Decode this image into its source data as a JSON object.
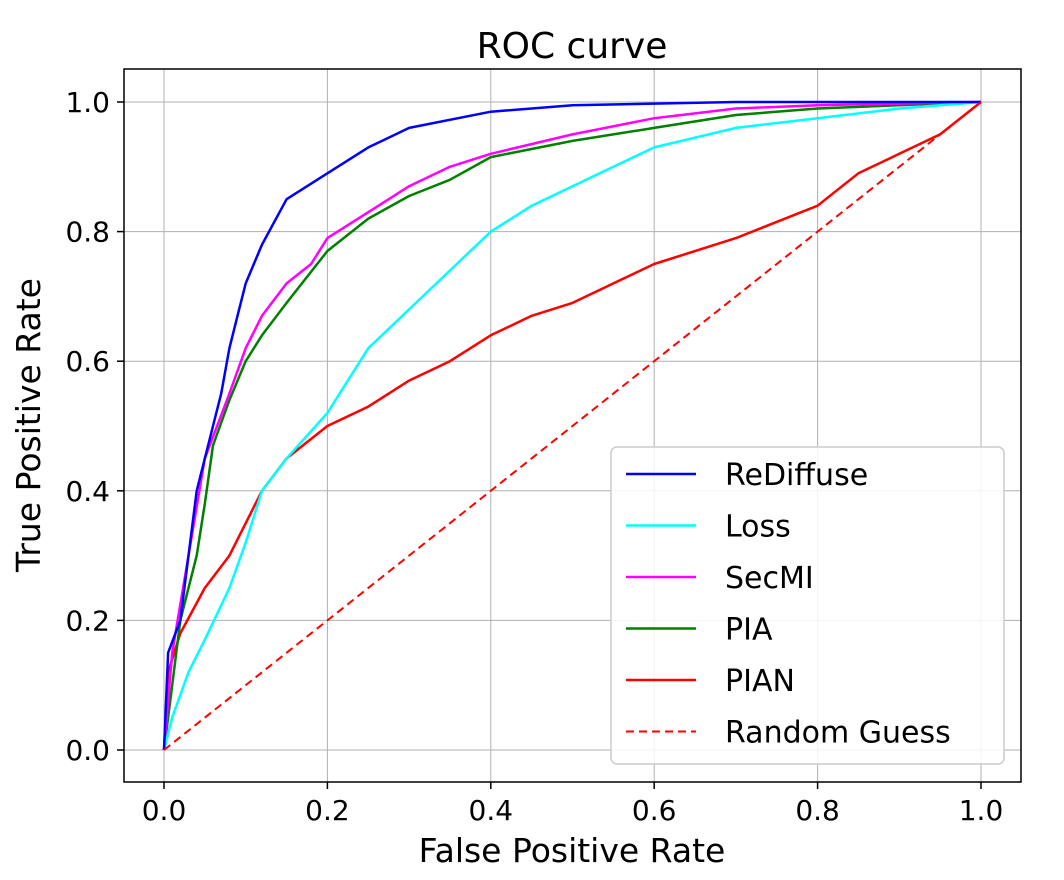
{
  "chart_data": {
    "type": "line",
    "title": "ROC curve",
    "xlabel": "False Positive Rate",
    "ylabel": "True Positive Rate",
    "xlim": [
      -0.05,
      1.05
    ],
    "ylim": [
      -0.05,
      1.05
    ],
    "xticks": [
      "0.0",
      "0.2",
      "0.4",
      "0.6",
      "0.8",
      "1.0"
    ],
    "yticks": [
      "0.0",
      "0.2",
      "0.4",
      "0.6",
      "0.8",
      "1.0"
    ],
    "grid": true,
    "legend_position": "lower-right",
    "series": [
      {
        "name": "ReDiffuse",
        "color": "#0000ff",
        "dash": false,
        "x": [
          0,
          0.005,
          0.02,
          0.03,
          0.04,
          0.06,
          0.07,
          0.08,
          0.09,
          0.1,
          0.12,
          0.15,
          0.2,
          0.25,
          0.3,
          0.4,
          0.5,
          0.7,
          1
        ],
        "y": [
          0,
          0.15,
          0.2,
          0.3,
          0.4,
          0.5,
          0.55,
          0.62,
          0.67,
          0.72,
          0.78,
          0.85,
          0.89,
          0.93,
          0.96,
          0.985,
          0.995,
          1.0,
          1
        ]
      },
      {
        "name": "Loss",
        "color": "#00ffff",
        "dash": false,
        "x": [
          0,
          0.01,
          0.03,
          0.05,
          0.08,
          0.1,
          0.12,
          0.15,
          0.2,
          0.22,
          0.25,
          0.3,
          0.35,
          0.4,
          0.45,
          0.5,
          0.6,
          0.7,
          0.8,
          0.9,
          1
        ],
        "y": [
          0,
          0.05,
          0.12,
          0.17,
          0.25,
          0.32,
          0.4,
          0.45,
          0.52,
          0.56,
          0.62,
          0.68,
          0.74,
          0.8,
          0.84,
          0.87,
          0.93,
          0.96,
          0.975,
          0.99,
          1
        ]
      },
      {
        "name": "SecMI",
        "color": "#ff00ff",
        "dash": false,
        "x": [
          0,
          0.01,
          0.03,
          0.05,
          0.08,
          0.1,
          0.12,
          0.15,
          0.18,
          0.2,
          0.25,
          0.3,
          0.35,
          0.4,
          0.5,
          0.6,
          0.7,
          0.8,
          1
        ],
        "y": [
          0,
          0.15,
          0.3,
          0.45,
          0.55,
          0.62,
          0.67,
          0.72,
          0.75,
          0.79,
          0.83,
          0.87,
          0.9,
          0.92,
          0.95,
          0.975,
          0.99,
          0.995,
          1
        ]
      },
      {
        "name": "PIA",
        "color": "#008000",
        "dash": false,
        "x": [
          0,
          0.01,
          0.02,
          0.04,
          0.05,
          0.06,
          0.08,
          0.1,
          0.12,
          0.15,
          0.2,
          0.25,
          0.3,
          0.35,
          0.4,
          0.5,
          0.6,
          0.7,
          0.8,
          1
        ],
        "y": [
          0,
          0.1,
          0.2,
          0.3,
          0.38,
          0.47,
          0.54,
          0.6,
          0.64,
          0.69,
          0.77,
          0.82,
          0.855,
          0.88,
          0.915,
          0.94,
          0.96,
          0.98,
          0.99,
          1
        ]
      },
      {
        "name": "PIAN",
        "color": "#ff0000",
        "dash": false,
        "x": [
          0,
          0.005,
          0.02,
          0.05,
          0.08,
          0.1,
          0.12,
          0.15,
          0.2,
          0.25,
          0.3,
          0.35,
          0.4,
          0.45,
          0.5,
          0.55,
          0.6,
          0.7,
          0.8,
          0.82,
          0.85,
          0.9,
          0.95,
          1
        ],
        "y": [
          0,
          0.12,
          0.18,
          0.25,
          0.3,
          0.35,
          0.4,
          0.45,
          0.5,
          0.53,
          0.57,
          0.6,
          0.64,
          0.67,
          0.69,
          0.72,
          0.75,
          0.79,
          0.84,
          0.86,
          0.89,
          0.92,
          0.95,
          1
        ]
      },
      {
        "name": "Random Guess",
        "color": "#ff0000",
        "dash": true,
        "x": [
          0,
          1
        ],
        "y": [
          0,
          1
        ]
      }
    ]
  }
}
